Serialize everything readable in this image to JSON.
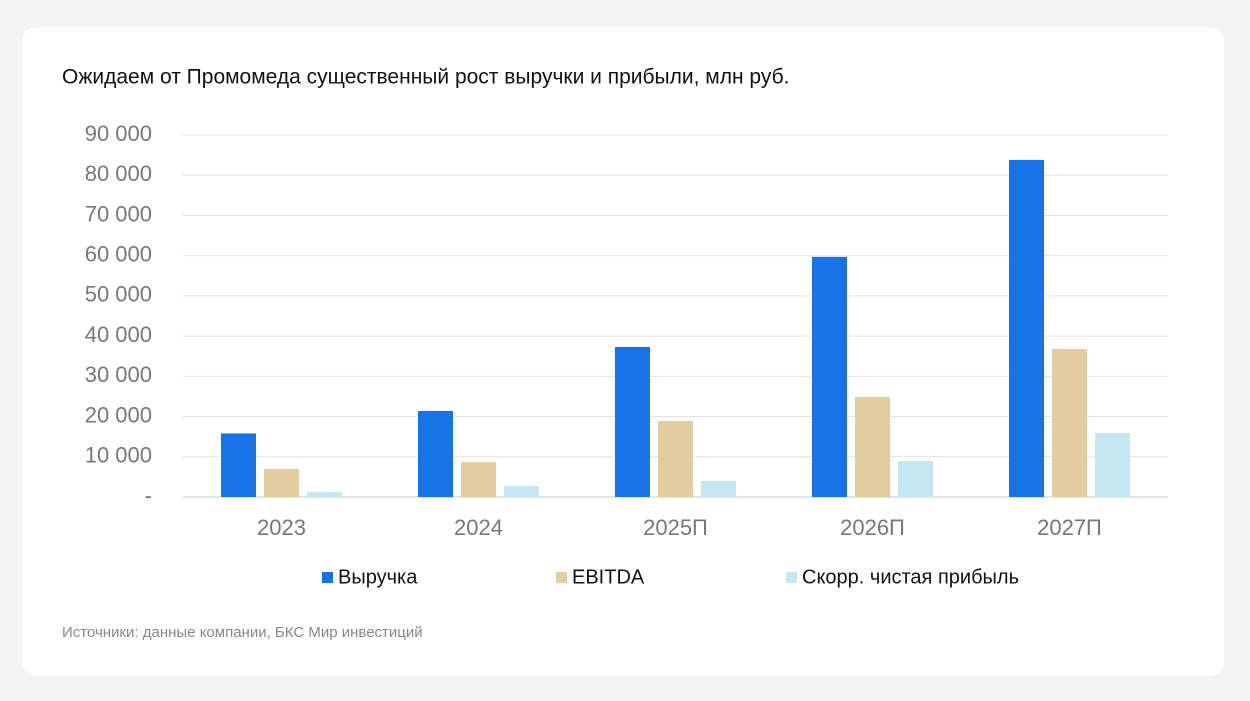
{
  "chart_data": {
    "type": "bar",
    "title": "Ожидаем от Промомеда существенный рост выручки и прибыли, млн руб.",
    "categories": [
      "2023",
      "2024",
      "2025П",
      "2026П",
      "2027П"
    ],
    "series": [
      {
        "name": "Выручка",
        "color": "#1872e8",
        "values": [
          15800,
          21400,
          37300,
          59700,
          83800
        ]
      },
      {
        "name": "EBITDA",
        "color": "#e3cda0",
        "values": [
          7000,
          8700,
          18900,
          24900,
          36800
        ]
      },
      {
        "name": "Скорр. чистая прибыль",
        "color": "#c6e6f4",
        "values": [
          1300,
          2700,
          4000,
          8950,
          15900
        ]
      }
    ],
    "ylim": [
      0,
      90000
    ],
    "yticks": [
      {
        "value": 0,
        "label": "-"
      },
      {
        "value": 10000,
        "label": "10 000"
      },
      {
        "value": 20000,
        "label": "20 000"
      },
      {
        "value": 30000,
        "label": "30 000"
      },
      {
        "value": 40000,
        "label": "40 000"
      },
      {
        "value": 50000,
        "label": "50 000"
      },
      {
        "value": 60000,
        "label": "60 000"
      },
      {
        "value": 70000,
        "label": "70 000"
      },
      {
        "value": 80000,
        "label": "80 000"
      },
      {
        "value": 90000,
        "label": "90 000"
      }
    ],
    "grid": true,
    "legend": "bottom",
    "source": "Источники: данные компании, БКС Мир инвестиций"
  }
}
